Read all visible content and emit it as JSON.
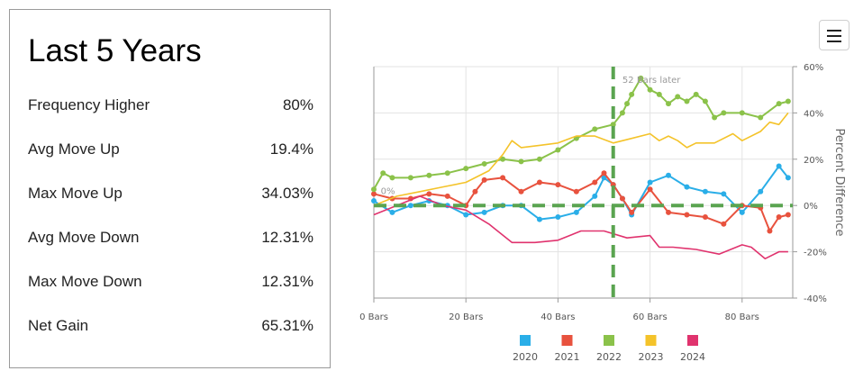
{
  "stats": {
    "title": "Last 5 Years",
    "rows": [
      {
        "label": "Frequency Higher",
        "value": "80%"
      },
      {
        "label": "Avg Move Up",
        "value": "19.4%"
      },
      {
        "label": "Max Move Up",
        "value": "34.03%"
      },
      {
        "label": "Avg Move Down",
        "value": "12.31%"
      },
      {
        "label": "Max Move Down",
        "value": "12.31%"
      },
      {
        "label": "Net Gain",
        "value": "65.31%"
      }
    ]
  },
  "menu": {
    "icon": "hamburger-menu-icon"
  },
  "chart_data": {
    "type": "line",
    "xlabel": "",
    "ylabel": "Percent Difference",
    "xlim": [
      0,
      91
    ],
    "ylim": [
      -40,
      60
    ],
    "x_ticks": [
      0,
      20,
      40,
      60,
      80
    ],
    "x_tick_labels": [
      "0 Bars",
      "20 Bars",
      "40 Bars",
      "60 Bars",
      "80 Bars"
    ],
    "y_ticks": [
      -40,
      -20,
      0,
      20,
      40,
      60
    ],
    "y_tick_labels": [
      "-40%",
      "-20%",
      "0%",
      "20%",
      "40%",
      "60%"
    ],
    "y_axis_side": "right",
    "grid": true,
    "legend_position": "bottom",
    "reference_lines": {
      "horizontal_y": 0,
      "vertical_x": 52,
      "color": "#5aa450"
    },
    "annotations": [
      {
        "text": "52 Bars later",
        "x": 54,
        "y": 53
      },
      {
        "text": "0%",
        "x": 1.5,
        "y": 5
      }
    ],
    "series": [
      {
        "name": "2020",
        "color": "#2aaee8",
        "markers": true,
        "x": [
          0,
          4,
          8,
          12,
          16,
          20,
          24,
          28,
          32,
          36,
          40,
          44,
          48,
          50,
          52,
          54,
          56,
          60,
          64,
          68,
          72,
          76,
          80,
          84,
          88,
          90
        ],
        "y": [
          2,
          -3,
          0,
          2,
          0,
          -4,
          -3,
          0,
          0,
          -6,
          -5,
          -3,
          4,
          12,
          9,
          3,
          -4,
          10,
          13,
          8,
          6,
          5,
          -3,
          6,
          17,
          12
        ]
      },
      {
        "name": "2021",
        "color": "#e8523e",
        "markers": true,
        "x": [
          0,
          4,
          8,
          12,
          16,
          20,
          22,
          24,
          28,
          32,
          36,
          40,
          44,
          48,
          50,
          52,
          54,
          56,
          60,
          64,
          68,
          72,
          76,
          80,
          84,
          86,
          88,
          90
        ],
        "y": [
          5,
          3,
          3,
          5,
          4,
          0,
          6,
          11,
          12,
          6,
          10,
          9,
          6,
          10,
          14,
          9,
          3,
          -3,
          7,
          -3,
          -4,
          -5,
          -8,
          0,
          -1,
          -11,
          -5,
          -4
        ]
      },
      {
        "name": "2022",
        "color": "#8bc24a",
        "markers": true,
        "x": [
          0,
          2,
          4,
          8,
          12,
          16,
          20,
          24,
          28,
          32,
          36,
          40,
          44,
          48,
          52,
          54,
          55,
          56,
          58,
          60,
          62,
          64,
          66,
          68,
          70,
          72,
          74,
          76,
          80,
          84,
          88,
          90
        ],
        "y": [
          7,
          14,
          12,
          12,
          13,
          14,
          16,
          18,
          20,
          19,
          20,
          24,
          29,
          33,
          35,
          40,
          44,
          48,
          55,
          50,
          48,
          44,
          47,
          45,
          48,
          45,
          38,
          40,
          40,
          38,
          44,
          45
        ]
      },
      {
        "name": "2023",
        "color": "#f4c32a",
        "markers": false,
        "x": [
          0,
          5,
          10,
          15,
          20,
          25,
          28,
          30,
          32,
          36,
          40,
          44,
          48,
          52,
          56,
          60,
          62,
          64,
          66,
          68,
          70,
          74,
          78,
          80,
          84,
          86,
          88,
          90
        ],
        "y": [
          0,
          4,
          6,
          8,
          10,
          15,
          22,
          28,
          25,
          26,
          27,
          30,
          30,
          27,
          29,
          31,
          28,
          30,
          28,
          25,
          27,
          27,
          31,
          28,
          32,
          36,
          35,
          40
        ]
      },
      {
        "name": "2024",
        "color": "#e0336e",
        "markers": false,
        "x": [
          0,
          5,
          10,
          15,
          20,
          25,
          30,
          35,
          40,
          45,
          50,
          55,
          60,
          62,
          65,
          70,
          75,
          80,
          82,
          85,
          88,
          90
        ],
        "y": [
          -4,
          0,
          4,
          0,
          -2,
          -8,
          -16,
          -16,
          -15,
          -11,
          -11,
          -14,
          -13,
          -18,
          -18,
          -19,
          -21,
          -17,
          -18,
          -23,
          -20,
          -20
        ]
      }
    ]
  }
}
